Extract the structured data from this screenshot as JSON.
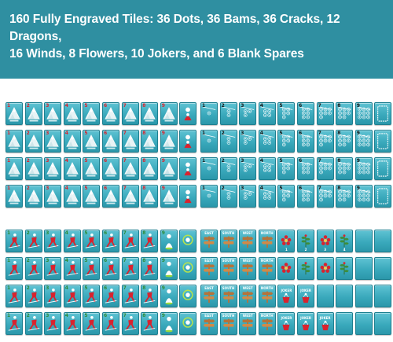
{
  "banner": {
    "title_line1": "160 Fully Engraved Tiles: 36 Dots, 36 Bams, 36 Cracks, 12 Dragons,",
    "title_line2": "16 Winds, 8 Flowers, 10 Jokers, and 6 Blank Spares"
  },
  "colors": {
    "banner": "#2f8fa1",
    "tile": "#3aa9bc",
    "red": "#d9232e",
    "green": "#2e8b3a",
    "white": "#ffffff",
    "brown": "#b5733a"
  },
  "panels": {
    "cracks": {
      "icon": "mountain-icon",
      "suit_numbers": [
        "1",
        "2",
        "3",
        "4",
        "5",
        "6",
        "7",
        "8",
        "9"
      ]
    },
    "dots": {
      "icon": "ski-lift-icon",
      "suit_numbers": [
        "1",
        "2",
        "3",
        "4",
        "5",
        "6",
        "7",
        "8",
        "9"
      ]
    },
    "bams": {
      "icon": "skier-icon",
      "suit_numbers": [
        "1",
        "2",
        "3",
        "4",
        "5",
        "6",
        "7",
        "8",
        "9"
      ]
    },
    "honors": {
      "winds": [
        "EAST",
        "SOUTH",
        "WEST",
        "NORTH"
      ],
      "flower_numbers": [
        "1",
        "2",
        "3",
        "4"
      ],
      "joker_label": "JOKER"
    }
  }
}
